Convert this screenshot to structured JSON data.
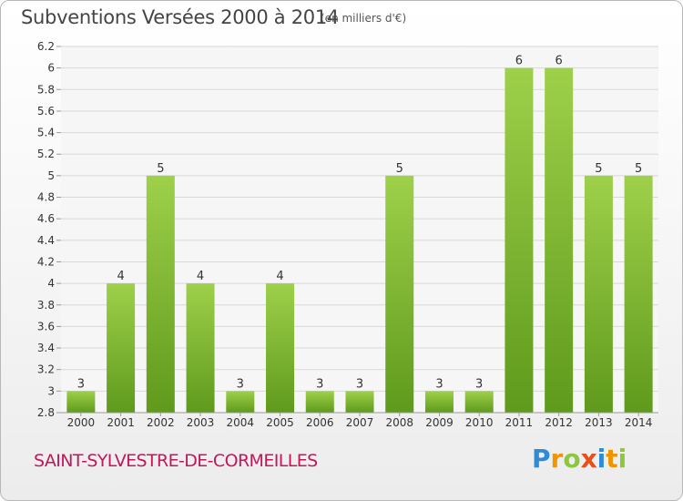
{
  "header": {
    "title": "Subventions Versées 2000 à 2014",
    "subtitle": "(en milliers d'€)"
  },
  "footer": {
    "commune": "SAINT-SYLVESTRE-DE-CORMEILLES",
    "brand": {
      "letters": [
        "P",
        "r",
        "o",
        "x",
        "i",
        "t",
        "i"
      ],
      "colors": [
        "#2e8bd6",
        "#f29400",
        "#8dc63f",
        "#e94e1b",
        "#2e8bd6",
        "#f29400",
        "#8dc63f"
      ]
    }
  },
  "colors": {
    "bar_light": "#9ed04a",
    "bar_dark": "#5f9a1c",
    "grid": "#d8d8d8",
    "axis_text": "#333333",
    "title_text": "#444444",
    "commune_text": "#c2185b"
  },
  "chart_data": {
    "type": "bar",
    "title": "Subventions Versées 2000 à 2014",
    "subtitle": "(en milliers d'€)",
    "categories": [
      "2000",
      "2001",
      "2002",
      "2003",
      "2004",
      "2005",
      "2006",
      "2007",
      "2008",
      "2009",
      "2010",
      "2011",
      "2012",
      "2013",
      "2014"
    ],
    "values": [
      3,
      4,
      5,
      4,
      3,
      4,
      3,
      3,
      5,
      3,
      3,
      6,
      6,
      5,
      5
    ],
    "data_labels": [
      "3",
      "4",
      "5",
      "4",
      "3",
      "4",
      "3",
      "3",
      "5",
      "3",
      "3",
      "6",
      "6",
      "5",
      "5"
    ],
    "yticks": [
      "2.8",
      "3",
      "3.2",
      "3.4",
      "3.6",
      "3.8",
      "4",
      "4.2",
      "4.4",
      "4.6",
      "4.8",
      "5",
      "5.2",
      "5.4",
      "5.6",
      "5.8",
      "6",
      "6.2"
    ],
    "ylim": [
      2.8,
      6.2
    ],
    "xlabel": "",
    "ylabel": "",
    "grid": true,
    "legend": "none"
  }
}
